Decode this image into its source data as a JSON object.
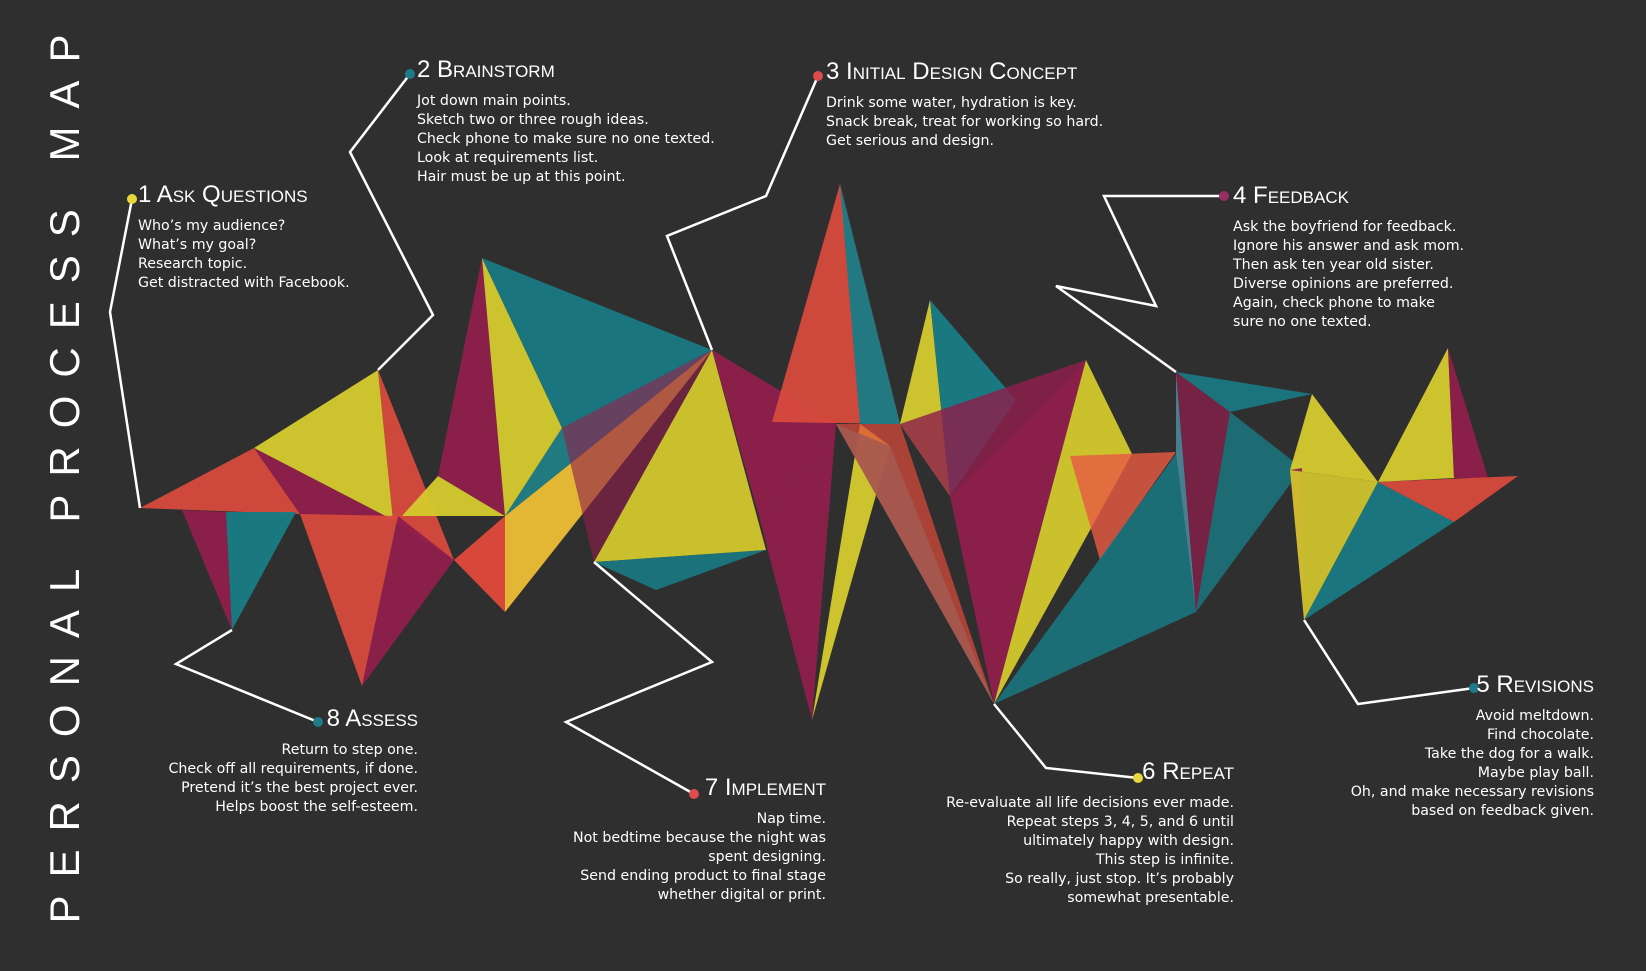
{
  "title": "PERSONAL PROCESS MAP",
  "colors": {
    "background": "#2f2f2f",
    "crimson": "#8f1f4c",
    "teal": "#197c86",
    "yellow": "#d6cb2e",
    "red": "#d84a3d",
    "yellow_dot": "#e7d73c",
    "teal_dot": "#1f7b87",
    "red_dot": "#de4b4c",
    "pink_dot": "#9a2d61"
  },
  "steps": [
    {
      "number": "1",
      "title": "Ask Questions",
      "lines": [
        "Who’s my audience?",
        "What’s my goal?",
        "Research topic.",
        "Get distracted with Facebook."
      ]
    },
    {
      "number": "2",
      "title": "Brainstorm",
      "lines": [
        "Jot down main points.",
        "Sketch two or three rough ideas.",
        "Check phone to make sure no one texted.",
        "Look at requirements list.",
        "Hair must be up at this point."
      ]
    },
    {
      "number": "3",
      "title": "Initial Design Concept",
      "lines": [
        "Drink some water, hydration is key.",
        "Snack break, treat for working so hard.",
        "Get serious and design."
      ]
    },
    {
      "number": "4",
      "title": "Feedback",
      "lines": [
        "Ask the boyfriend for feedback.",
        "Ignore his answer and ask mom.",
        "Then ask ten year old sister.",
        "Diverse opinions are preferred.",
        "Again, check phone to make",
        "sure no one texted."
      ]
    },
    {
      "number": "5",
      "title": "Revisions",
      "lines": [
        "Avoid meltdown.",
        "Find chocolate.",
        "Take the dog for a walk.",
        "Maybe play ball.",
        "Oh, and make necessary revisions",
        "based on feedback given."
      ]
    },
    {
      "number": "6",
      "title": "Repeat",
      "lines": [
        "Re-evaluate all life decisions ever made.",
        "Repeat steps 3, 4, 5, and 6 until",
        "ultimately happy with design.",
        "This step is infinite.",
        "So really, just stop. It’s probably",
        "somewhat presentable."
      ]
    },
    {
      "number": "7",
      "title": "Implement",
      "lines": [
        "Nap time.",
        "Not bedtime because the night was",
        "spent designing.",
        "Send ending product to final stage",
        "whether digital or print."
      ]
    },
    {
      "number": "8",
      "title": "Assess",
      "lines": [
        "Return to step one.",
        "Check off all requirements, if done.",
        "Pretend it’s the best project ever.",
        "Helps boost the self-esteem."
      ]
    }
  ]
}
